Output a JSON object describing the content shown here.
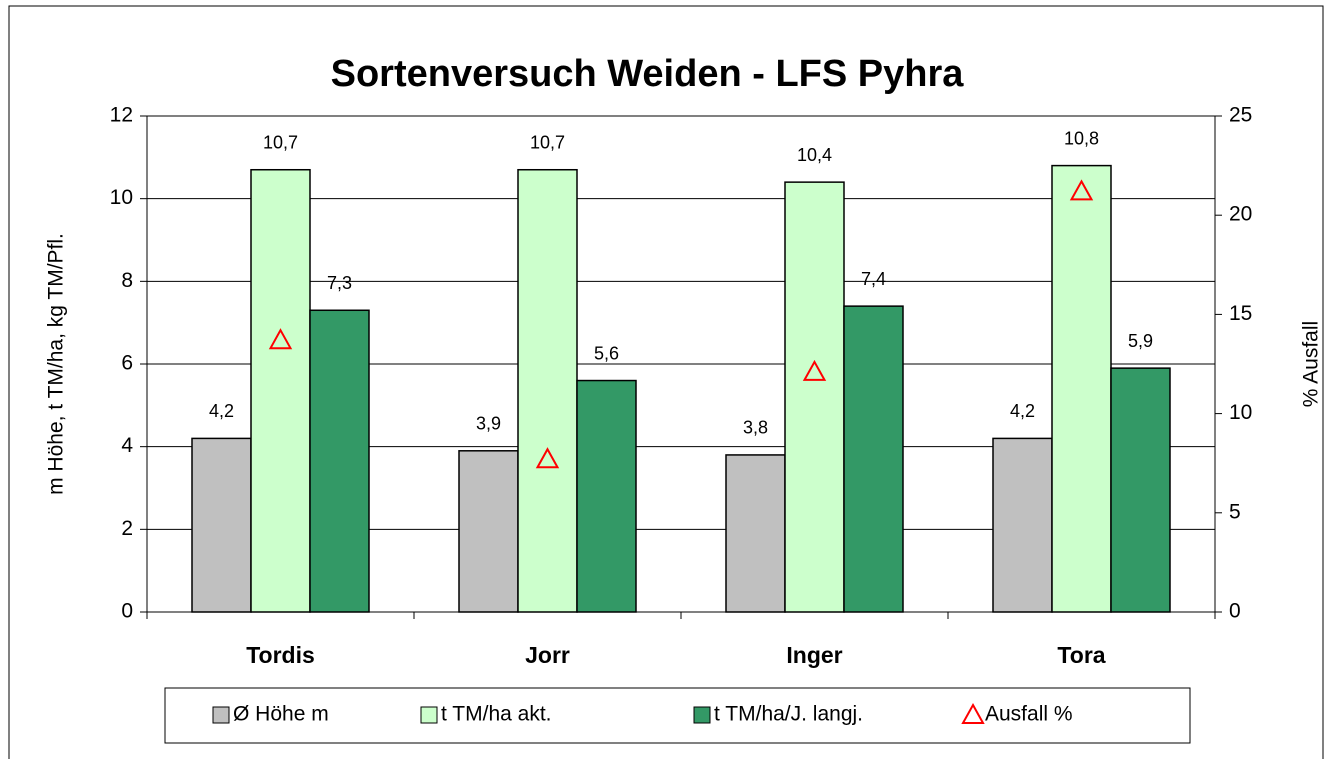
{
  "chart_data": {
    "type": "bar",
    "title": "Sortenversuch Weiden - LFS Pyhra",
    "y_label": "m Höhe, t TM/ha, kg TM/Pfl.",
    "y2_label": "% Ausfall",
    "categories": [
      "Tordis",
      "Jorr",
      "Inger",
      "Tora"
    ],
    "series": [
      {
        "name": "Ø Höhe m",
        "color": "#c0c0c0",
        "values": [
          4.2,
          3.9,
          3.8,
          4.2
        ],
        "value_labels": [
          "4,2",
          "3,9",
          "3,8",
          "4,2"
        ]
      },
      {
        "name": "t TM/ha akt.",
        "color": "#ccffcc",
        "values": [
          10.7,
          10.7,
          10.4,
          10.8
        ],
        "value_labels": [
          "10,7",
          "10,7",
          "10,4",
          "10,8"
        ]
      },
      {
        "name": "t TM/ha/J. langj.",
        "color": "#339966",
        "values": [
          7.3,
          5.6,
          7.4,
          5.9
        ],
        "value_labels": [
          "7,3",
          "5,6",
          "7,4",
          "5,9"
        ]
      },
      {
        "name": "Ausfall %",
        "color": "#ff0000",
        "axis": "y2",
        "marker": "triangle",
        "values": [
          13.7,
          7.7,
          12.1,
          21.2
        ]
      }
    ],
    "ylim": [
      0,
      12
    ],
    "yticks": [
      0,
      2,
      4,
      6,
      8,
      10,
      12
    ],
    "y2lim": [
      0,
      25
    ],
    "y2ticks": [
      0,
      5,
      10,
      15,
      20,
      25
    ],
    "grid": true,
    "legend": "bottom"
  }
}
